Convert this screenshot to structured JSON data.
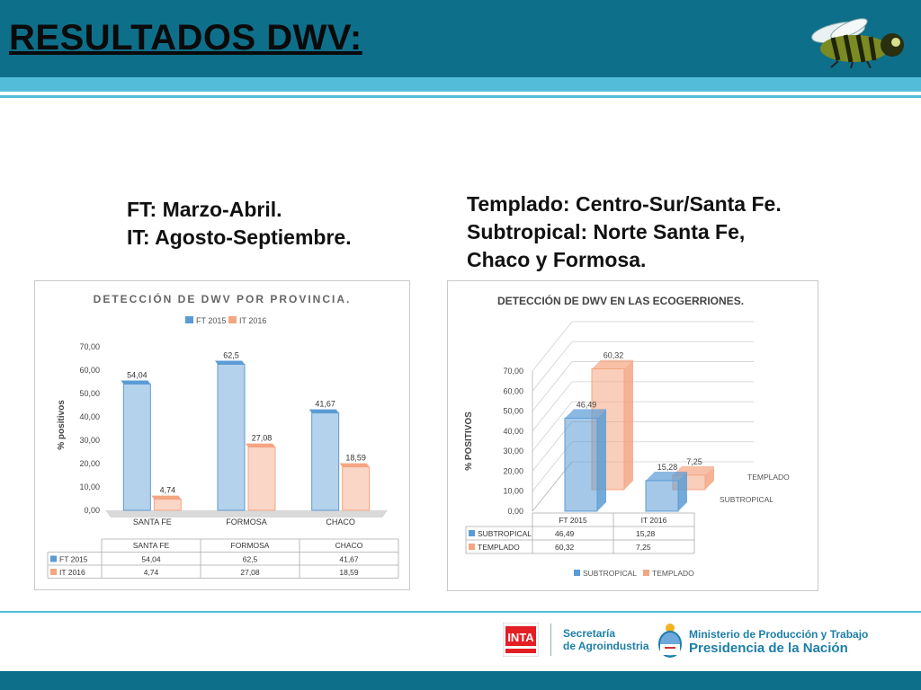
{
  "slide": {
    "title": "RESULTADOS DWV:",
    "note_left": [
      "FT: Marzo-Abril.",
      "IT: Agosto-Septiembre."
    ],
    "note_right": [
      "Templado: Centro-Sur/Santa Fe.",
      "Subtropical: Norte Santa Fe,",
      "Chaco y Formosa."
    ]
  },
  "footer": {
    "inta_logo": "INTA",
    "secretaria": [
      "Secretaría",
      "de Agroindustria"
    ],
    "ministerio": "Ministerio de Producción y Trabajo",
    "presidencia": "Presidencia de la Nación"
  },
  "colors": {
    "header": "#0e6f8a",
    "band": "#52bcd9",
    "bar_blue": "#5b9bd5",
    "bar_orange": "#f4a582",
    "footer_text": "#1c7fa8"
  },
  "icons": {
    "logo": "bee-icon",
    "shield": "national-shield-icon"
  },
  "chart_data": [
    {
      "type": "bar",
      "title": "DETECCIÓN DE DWV POR PROVINCIA.",
      "categories": [
        "SANTA FE",
        "FORMOSA",
        "CHACO"
      ],
      "series": [
        {
          "name": "FT 2015",
          "values": [
            54.04,
            62.5,
            41.67
          ],
          "labels": [
            "54,04",
            "62,5",
            "41,67"
          ]
        },
        {
          "name": "IT 2016",
          "values": [
            4.74,
            27.08,
            18.59
          ],
          "labels": [
            "4,74",
            "27,08",
            "18,59"
          ]
        }
      ],
      "ylabel": "% positivos",
      "ylim": [
        0,
        70
      ],
      "yticks": [
        "0,00",
        "10,00",
        "20,00",
        "30,00",
        "40,00",
        "50,00",
        "60,00",
        "70,00"
      ],
      "legend": "top",
      "data_table": true
    },
    {
      "type": "bar",
      "title": "DETECCIÓN DE DWV EN LAS ECOGERRIONES.",
      "categories": [
        "FT 2015",
        "IT 2016"
      ],
      "series": [
        {
          "name": "SUBTROPICAL",
          "values": [
            46.49,
            15.28
          ],
          "labels": [
            "46,49",
            "15,28"
          ]
        },
        {
          "name": "TEMPLADO",
          "values": [
            60.32,
            7.25
          ],
          "labels": [
            "60,32",
            "7,25"
          ]
        }
      ],
      "ylabel": "% POSITIVOS",
      "ylim": [
        0,
        70
      ],
      "yticks": [
        "0,00",
        "10,00",
        "20,00",
        "30,00",
        "40,00",
        "50,00",
        "60,00",
        "70,00"
      ],
      "legend": "bottom",
      "data_table": true
    }
  ]
}
